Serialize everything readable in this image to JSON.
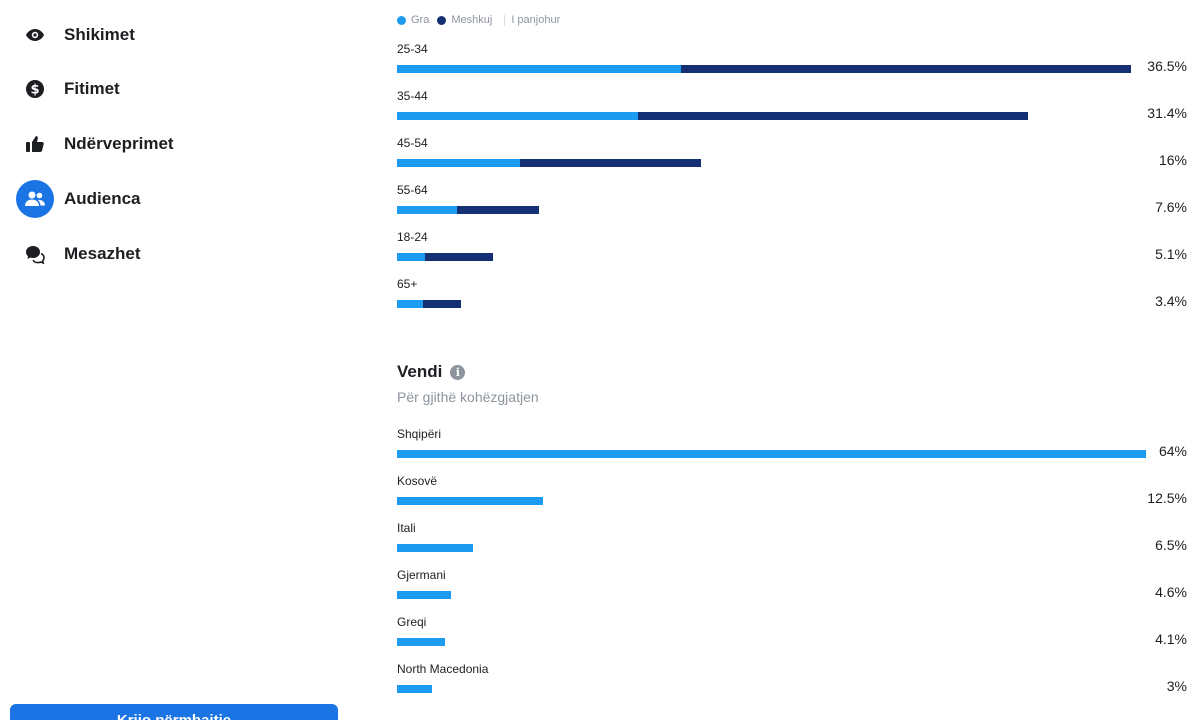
{
  "sidebar": {
    "items": [
      {
        "label": "Shikimet",
        "icon": "eye-icon",
        "active": false
      },
      {
        "label": "Fitimet",
        "icon": "dollar-icon",
        "active": false
      },
      {
        "label": "Ndërveprimet",
        "icon": "thumbs-up-icon",
        "active": false
      },
      {
        "label": "Audienca",
        "icon": "people-icon",
        "active": true
      },
      {
        "label": "Mesazhet",
        "icon": "chat-bubbles-icon",
        "active": false
      }
    ],
    "cta_label": "Krijo përmbajtje"
  },
  "age_chart": {
    "legend": [
      {
        "label": "Gra",
        "color": "#1d9bf0"
      },
      {
        "label": "Meshkuj",
        "color": "#142f74"
      },
      {
        "label": "I panjohur",
        "color": "#dadde1"
      }
    ],
    "rows": [
      {
        "label": "25-34",
        "pct": "36.5%",
        "women": 14.1,
        "men": 22.4
      },
      {
        "label": "35-44",
        "pct": "31.4%",
        "women": 12.0,
        "men": 19.4
      },
      {
        "label": "45-54",
        "pct": "16%",
        "women": 6.1,
        "men": 9.0
      },
      {
        "label": "55-64",
        "pct": "7.6%",
        "women": 3.0,
        "men": 4.1
      },
      {
        "label": "18-24",
        "pct": "5.1%",
        "women": 1.4,
        "men": 3.4
      },
      {
        "label": "65+",
        "pct": "3.4%",
        "women": 1.3,
        "men": 1.9
      }
    ]
  },
  "country_chart": {
    "title": "Vendi",
    "subtitle": "Për gjithë kohëzgjatjen",
    "rows": [
      {
        "label": "Shqipëri",
        "pct": "64%",
        "value": 64
      },
      {
        "label": "Kosovë",
        "pct": "12.5%",
        "value": 12.5
      },
      {
        "label": "Itali",
        "pct": "6.5%",
        "value": 6.5
      },
      {
        "label": "Gjermani",
        "pct": "4.6%",
        "value": 4.6
      },
      {
        "label": "Greqi",
        "pct": "4.1%",
        "value": 4.1
      },
      {
        "label": "North Macedonia",
        "pct": "3%",
        "value": 3
      }
    ]
  },
  "colors": {
    "accent": "#1b74e4",
    "women": "#1d9bf0",
    "men": "#142f74"
  }
}
